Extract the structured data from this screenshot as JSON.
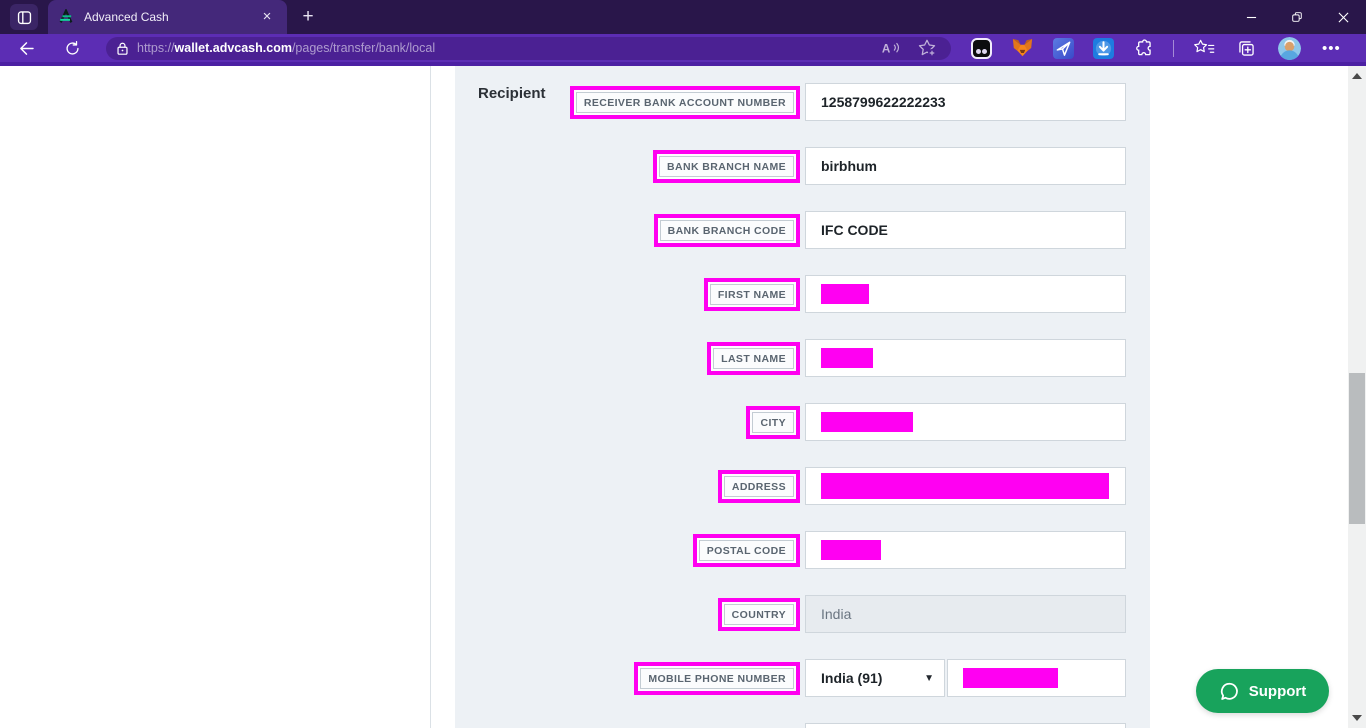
{
  "browser": {
    "tab_title": "Advanced Cash",
    "tab_close_glyph": "×",
    "new_tab_glyph": "+",
    "url_scheme": "https://",
    "url_host": "wallet.advcash.com",
    "url_path": "/pages/transfer/bank/local",
    "minimize_glyph": "—",
    "close_glyph": "✕",
    "menu_glyph": "•••"
  },
  "icons": {
    "dropdown_caret_glyph": "▼"
  },
  "page": {
    "section_label": "Recipient",
    "fields": [
      {
        "label": "RECEIVER BANK ACCOUNT NUMBER",
        "value": "1258799622222233"
      },
      {
        "label": "BANK BRANCH NAME",
        "value": "birbhum"
      },
      {
        "label": "BANK BRANCH CODE",
        "value": "IFC CODE"
      },
      {
        "label": "FIRST NAME",
        "redacted": true,
        "redact_width": 48
      },
      {
        "label": "LAST NAME",
        "redacted": true,
        "redact_width": 52
      },
      {
        "label": "CITY",
        "redacted": true,
        "redact_width": 92
      },
      {
        "label": "ADDRESS",
        "redacted": true,
        "redact_width": 288,
        "redact_height": 26
      },
      {
        "label": "POSTAL CODE",
        "redacted": true,
        "redact_width": 60
      },
      {
        "label": "COUNTRY",
        "value": "India",
        "disabled": true
      },
      {
        "label": "MOBILE PHONE NUMBER",
        "phone": true,
        "country_code": "India (91)",
        "redacted": true,
        "redact_width": 95
      }
    ],
    "support_label": "Support"
  },
  "colors": {
    "titlebar": "#29164a",
    "tab": "#44287a",
    "toolbar": "#5c2db4",
    "url_pill": "#4b2193",
    "panel": "#edf1f5",
    "annotation": "#ff00f0",
    "redaction": "#ff00f2",
    "support_green": "#18a35c"
  }
}
